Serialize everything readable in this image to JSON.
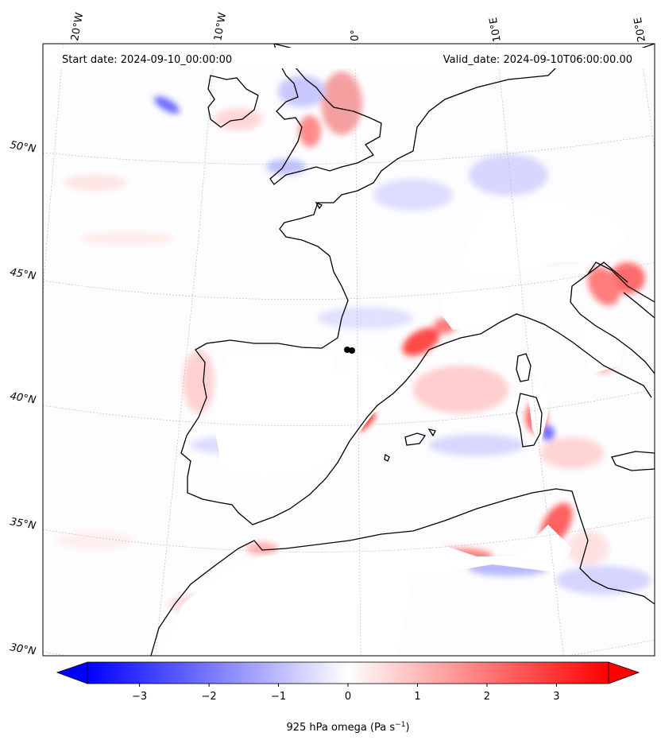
{
  "header": {
    "start_date": "Start date: 2024-09-10_00:00:00",
    "valid_date": "Valid_date: 2024-09-10T06:00:00.00"
  },
  "longitude_labels": [
    "20°W",
    "10°W",
    "0°",
    "10°E",
    "20°E"
  ],
  "latitude_labels": [
    "50°N",
    "45°N",
    "40°N",
    "35°N",
    "30°N"
  ],
  "colorbar": {
    "title": "925 hPa omega (Pa s",
    "title_exponent": "−1",
    "title_close": ")",
    "ticks": [
      "−3",
      "−2",
      "−1",
      "0",
      "1",
      "2",
      "3"
    ],
    "range": [
      -3.75,
      3.75
    ],
    "colormap": "bwr",
    "extend": "both",
    "low_color": "#0000ff",
    "mid_color": "#ffffff",
    "high_color": "#ff0000"
  },
  "map": {
    "projection": "Lambert conformal",
    "field": "omega at 925 hPa",
    "coastline_color": "#000000",
    "gridline_style": "dotted"
  }
}
